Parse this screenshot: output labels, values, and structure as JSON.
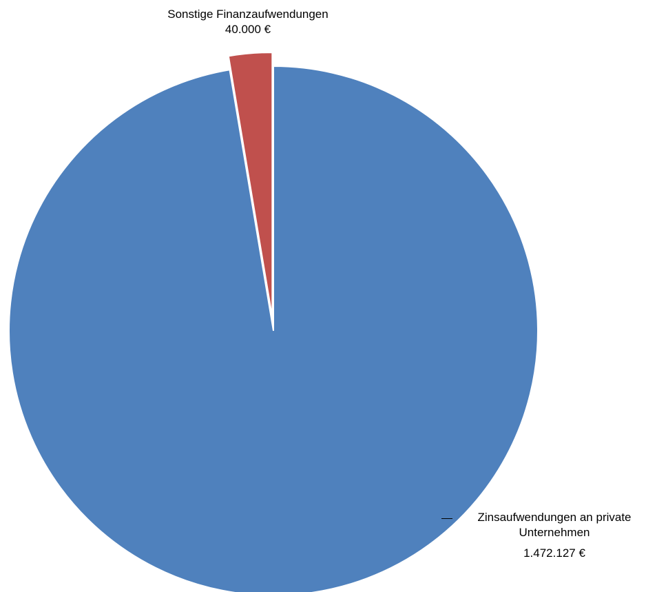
{
  "chart_data": {
    "type": "pie",
    "slices": [
      {
        "label": "Sonstige Finanzaufwendungen",
        "value": 40000,
        "value_label": "40.000 €",
        "color": "#C0504D",
        "exploded": true
      },
      {
        "label_line1": "Zinsaufwendungen an private",
        "label_line2": "Unternehmen",
        "label": "Zinsaufwendungen an private Unternehmen",
        "value": 1472127,
        "value_label": "1.472.127 €",
        "color": "#4F81BD",
        "exploded": false
      }
    ],
    "legend": "none"
  }
}
